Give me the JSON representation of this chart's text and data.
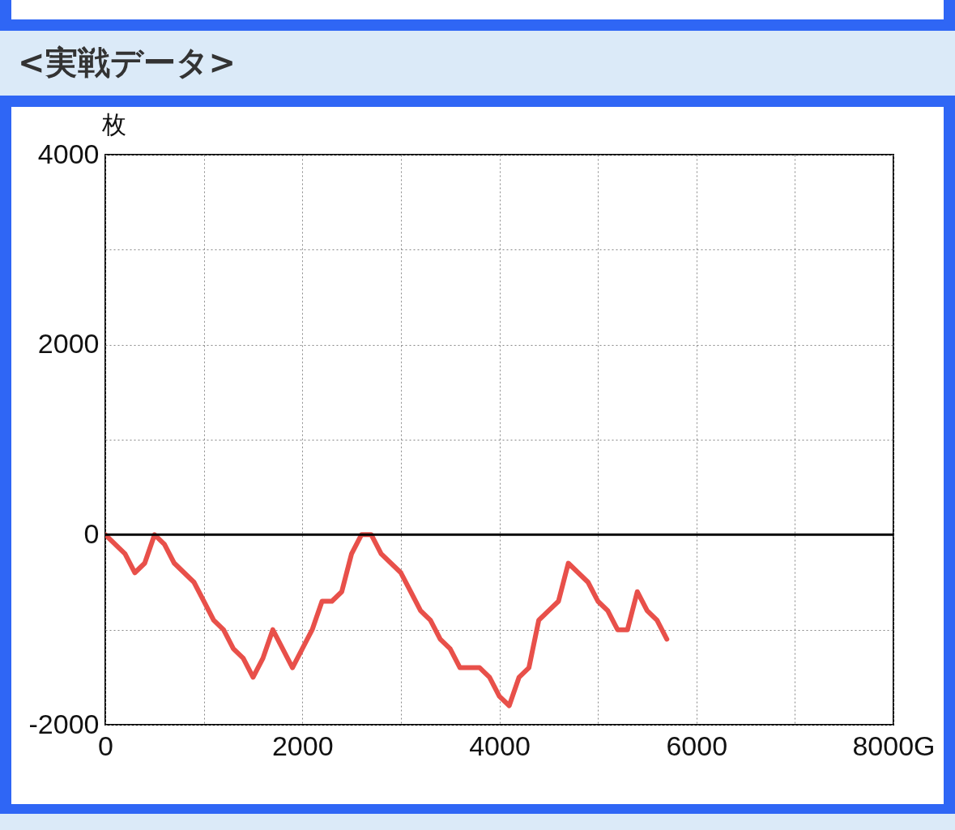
{
  "chart_data": {
    "type": "line",
    "title": "<実戦データ>",
    "ylabel": "枚",
    "x": [
      0,
      200,
      300,
      400,
      500,
      600,
      700,
      900,
      1000,
      1100,
      1200,
      1300,
      1400,
      1500,
      1600,
      1700,
      1900,
      2000,
      2100,
      2200,
      2300,
      2400,
      2500,
      2600,
      2700,
      2800,
      3000,
      3100,
      3200,
      3300,
      3400,
      3500,
      3600,
      3800,
      3900,
      4000,
      4100,
      4200,
      4300,
      4400,
      4500,
      4600,
      4700,
      4900,
      5000,
      5100,
      5200,
      5300,
      5400,
      5500,
      5600,
      5700
    ],
    "series": [
      {
        "color": "#e8504a",
        "values": [
          0,
          -200,
          -400,
          -300,
          0,
          -100,
          -300,
          -500,
          -700,
          -900,
          -1000,
          -1200,
          -1300,
          -1500,
          -1300,
          -1000,
          -1400,
          -1200,
          -1000,
          -700,
          -700,
          -600,
          -200,
          0,
          0,
          -200,
          -400,
          -600,
          -800,
          -900,
          -1100,
          -1200,
          -1400,
          -1400,
          -1500,
          -1700,
          -1800,
          -1500,
          -1400,
          -900,
          -800,
          -700,
          -300,
          -500,
          -700,
          -800,
          -1000,
          -1000,
          -600,
          -800,
          -900,
          -1100
        ]
      }
    ],
    "xlim": [
      0,
      8000
    ],
    "xticks": [
      0,
      {
        "value": 1000,
        "label": null
      },
      2000,
      {
        "value": 3000,
        "label": null
      },
      4000,
      {
        "value": 5000,
        "label": null
      },
      6000,
      {
        "value": 7000,
        "label": null
      },
      {
        "value": 8000,
        "label": "8000G"
      }
    ],
    "ylim": [
      -2000,
      4000
    ],
    "yticks": [
      -2000,
      {
        "value": -1000,
        "label": null
      },
      0,
      {
        "value": 1000,
        "label": null
      },
      2000,
      {
        "value": 3000,
        "label": null
      },
      4000
    ],
    "grid": true,
    "ref_lines": [
      {
        "axis": "y",
        "value": 0,
        "color": "#000000"
      }
    ]
  }
}
